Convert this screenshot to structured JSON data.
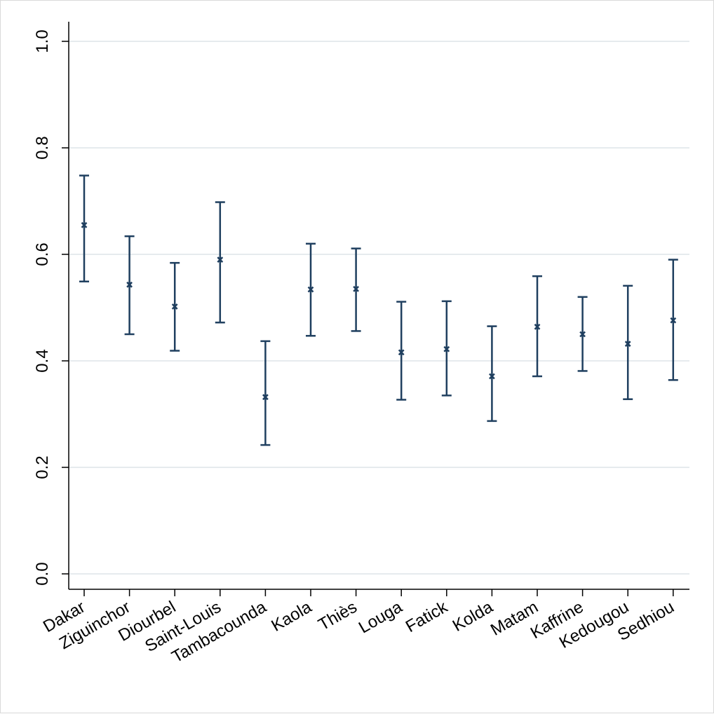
{
  "chart_data": {
    "type": "errorbar",
    "title": "",
    "xlabel": "",
    "ylabel": "",
    "ylim": [
      0,
      1
    ],
    "yticks": [
      0.0,
      0.2,
      0.4,
      0.6,
      0.8,
      1.0
    ],
    "ytick_labels": [
      "0.0",
      "0.2",
      "0.4",
      "0.6",
      "0.8",
      "1.0"
    ],
    "grid": true,
    "colors": {
      "series": "#1f3f5f",
      "grid": "#e6ebee",
      "axis": "#000000"
    },
    "categories": [
      "Dakar",
      "Ziguinchor",
      "Diourbel",
      "Saint-Louis",
      "Tambacounda",
      "Kaola",
      "Thiès",
      "Louga",
      "Fatick",
      "Kolda",
      "Matam",
      "Kaffrine",
      "Kedougou",
      "Sedhiou"
    ],
    "values": [
      0.655,
      0.543,
      0.502,
      0.59,
      0.332,
      0.534,
      0.535,
      0.416,
      0.422,
      0.371,
      0.464,
      0.45,
      0.432,
      0.476
    ],
    "lower": [
      0.549,
      0.45,
      0.419,
      0.472,
      0.242,
      0.447,
      0.456,
      0.327,
      0.335,
      0.287,
      0.371,
      0.381,
      0.328,
      0.364
    ],
    "upper": [
      0.748,
      0.634,
      0.584,
      0.698,
      0.437,
      0.62,
      0.611,
      0.511,
      0.512,
      0.465,
      0.559,
      0.52,
      0.541,
      0.59
    ]
  }
}
